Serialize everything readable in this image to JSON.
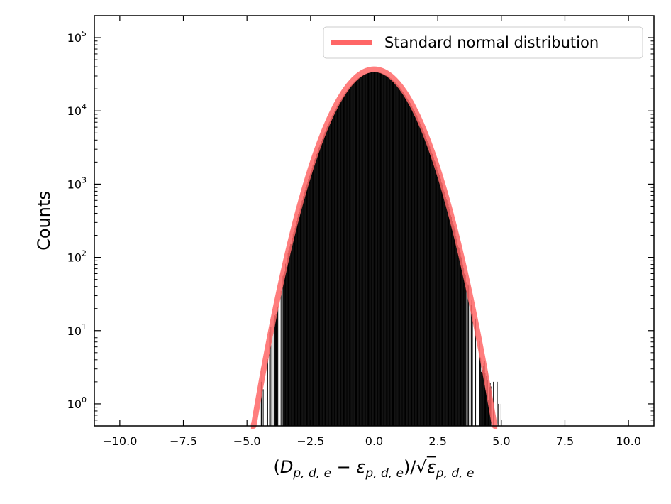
{
  "chart_data": {
    "type": "bar",
    "subtype": "histogram",
    "xlabel": "(D_{p,d,e} − ε_{p,d,e})/√ε_{p,d,e}",
    "ylabel": "Counts",
    "yscale": "log",
    "xlim": [
      -11.0,
      11.0
    ],
    "ylim": [
      0.5,
      200000
    ],
    "grid": false,
    "legend_position": "top-right",
    "x_ticks": [
      {
        "value": -10.0,
        "label": "−10.0"
      },
      {
        "value": -7.5,
        "label": "−7.5"
      },
      {
        "value": -5.0,
        "label": "−5.0"
      },
      {
        "value": -2.5,
        "label": "−2.5"
      },
      {
        "value": 0.0,
        "label": "0.0"
      },
      {
        "value": 2.5,
        "label": "2.5"
      },
      {
        "value": 5.0,
        "label": "5.0"
      },
      {
        "value": 7.5,
        "label": "7.5"
      },
      {
        "value": 10.0,
        "label": "10.0"
      }
    ],
    "y_ticks": [
      {
        "exp": 0,
        "base": "10",
        "sup": "0"
      },
      {
        "exp": 1,
        "base": "10",
        "sup": "1"
      },
      {
        "exp": 2,
        "base": "10",
        "sup": "2"
      },
      {
        "exp": 3,
        "base": "10",
        "sup": "3"
      },
      {
        "exp": 4,
        "base": "10",
        "sup": "4"
      },
      {
        "exp": 5,
        "base": "10",
        "sup": "5"
      }
    ],
    "series": [
      {
        "name": "Standard normal distribution",
        "kind": "line",
        "color": "#ff6666",
        "peak": 37000,
        "mean": 0.0,
        "sigma": 1.0
      },
      {
        "kind": "histogram",
        "color": "#000000",
        "peak": 34000,
        "x_min": -4.5,
        "x_max": 5.0,
        "bin_width": 0.025
      }
    ]
  }
}
